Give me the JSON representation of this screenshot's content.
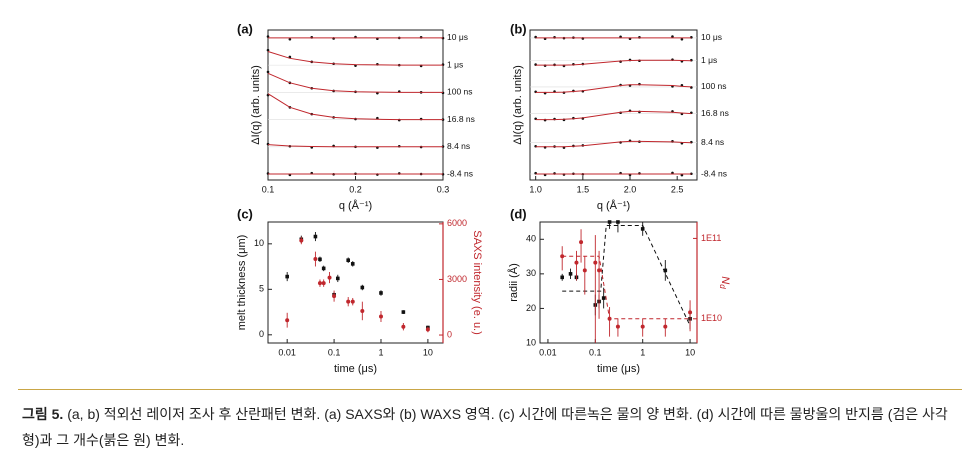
{
  "chart_data": [
    {
      "type": "offset_line",
      "panel_label": "(a)",
      "x_label": "q (Å⁻¹)",
      "y_label": "ΔI(q) (arb. units)",
      "xlim": [
        0.1,
        0.3
      ],
      "xticks": [
        0.1,
        0.2,
        0.3
      ],
      "ylim": [
        0.78,
        6.29
      ],
      "point_color": "#111111",
      "fit_color": "#c0272d",
      "x": [
        0.1,
        0.125,
        0.15,
        0.175,
        0.2,
        0.225,
        0.25,
        0.275,
        0.3
      ],
      "series": [
        {
          "name": "10 μs",
          "values": [
            6.05,
            5.95,
            6.02,
            5.98,
            6.03,
            5.97,
            6.0,
            6.02,
            5.99
          ],
          "fit": [
            6,
            6,
            6,
            6,
            6,
            6,
            6,
            6,
            6
          ]
        },
        {
          "name": "1 μs",
          "values": [
            5.55,
            5.3,
            5.12,
            5.05,
            4.98,
            5.03,
            5.0,
            4.97,
            5.02
          ],
          "fit": [
            5.5,
            5.25,
            5.12,
            5.05,
            5.02,
            5.01,
            5,
            5,
            5
          ]
        },
        {
          "name": "100 ns",
          "values": [
            4.75,
            4.35,
            4.15,
            4.05,
            4.02,
            3.97,
            4.03,
            4.0,
            3.98
          ],
          "fit": [
            4.7,
            4.35,
            4.15,
            4.06,
            4.02,
            4.01,
            4,
            4,
            4
          ]
        },
        {
          "name": "16.8 ns",
          "values": [
            3.9,
            3.45,
            3.2,
            3.08,
            3.02,
            3.05,
            2.98,
            3.02,
            3.0
          ],
          "fit": [
            3.95,
            3.45,
            3.2,
            3.08,
            3.03,
            3.01,
            3,
            3,
            3
          ]
        },
        {
          "name": "8.4 ns",
          "values": [
            2.1,
            2.02,
            1.98,
            2.03,
            2.0,
            1.97,
            2.02,
            1.99,
            2.01
          ],
          "fit": [
            2.08,
            2.03,
            2.01,
            2,
            2,
            2,
            2,
            2,
            2
          ]
        },
        {
          "name": "-8.4 ns",
          "values": [
            1.02,
            0.97,
            1.03,
            0.99,
            1.01,
            0.98,
            1.02,
            1.0,
            0.99
          ],
          "fit": [
            1,
            1,
            1,
            1,
            1,
            1,
            1,
            1,
            1
          ]
        }
      ]
    },
    {
      "type": "offset_line",
      "panel_label": "(b)",
      "x_label": "q (Å⁻¹)",
      "y_label": "ΔI(q) (arb. units)",
      "xlim": [
        0.94,
        2.71
      ],
      "xticks": [
        {
          "value": 1,
          "label": "1.0"
        },
        1.5,
        {
          "value": 2,
          "label": "2.0"
        },
        2.5
      ],
      "ylim": [
        0.78,
        6.29
      ],
      "point_color": "#111111",
      "fit_color": "#c0272d",
      "x": [
        1.0,
        1.1,
        1.2,
        1.3,
        1.4,
        1.5,
        1.9,
        2.0,
        2.1,
        2.45,
        2.55,
        2.65
      ],
      "series": [
        {
          "name": "10 μs",
          "values": [
            6.03,
            5.97,
            6.02,
            5.99,
            6.01,
            5.98,
            6.04,
            5.97,
            6.02,
            6.05,
            5.95,
            6.02
          ],
          "fit": [
            6,
            6,
            6,
            6,
            6,
            6,
            6,
            6,
            6,
            6,
            6,
            6
          ]
        },
        {
          "name": "1 μs",
          "values": [
            5.02,
            4.98,
            5.01,
            4.97,
            5.03,
            5.04,
            5.13,
            5.19,
            5.16,
            5.2,
            5.14,
            5.18
          ],
          "fit": [
            5,
            5,
            5,
            5,
            5.01,
            5.03,
            5.15,
            5.17,
            5.18,
            5.18,
            5.17,
            5.16
          ]
        },
        {
          "name": "100 ns",
          "values": [
            4.02,
            3.97,
            4.03,
            3.99,
            4.05,
            4.04,
            4.27,
            4.25,
            4.3,
            4.22,
            4.26,
            4.18
          ],
          "fit": [
            4,
            4,
            4,
            4.01,
            4.03,
            4.06,
            4.25,
            4.28,
            4.28,
            4.25,
            4.22,
            4.2
          ]
        },
        {
          "name": "16.8 ns",
          "values": [
            3.03,
            2.98,
            3.02,
            2.99,
            3.05,
            3.04,
            3.25,
            3.32,
            3.28,
            3.3,
            3.21,
            3.25
          ],
          "fit": [
            3,
            3,
            3,
            3.01,
            3.03,
            3.06,
            3.27,
            3.3,
            3.3,
            3.27,
            3.24,
            3.22
          ]
        },
        {
          "name": "8.4 ns",
          "values": [
            2.02,
            1.98,
            2.01,
            1.97,
            2.03,
            2.05,
            2.16,
            2.22,
            2.19,
            2.2,
            2.13,
            2.17
          ],
          "fit": [
            2,
            2,
            2,
            2,
            2.02,
            2.04,
            2.18,
            2.2,
            2.2,
            2.18,
            2.16,
            2.15
          ]
        },
        {
          "name": "-8.4 ns",
          "values": [
            1.03,
            0.97,
            1.02,
            0.98,
            1.01,
            0.99,
            1.03,
            0.97,
            1.02,
            1.04,
            0.96,
            1.01
          ],
          "fit": [
            1,
            1,
            1,
            1,
            1,
            1,
            1,
            1,
            1,
            1,
            1,
            1
          ]
        }
      ]
    },
    {
      "type": "scatter_error",
      "panel_label": "(c)",
      "x_label": "time (μs)",
      "y_label": "melt thickness (μm)",
      "y2_label": "SAXS intensity (e. u.)",
      "x_log": true,
      "xlim": [
        0.0039,
        21
      ],
      "xticks": [
        0.01,
        0.1,
        1,
        10
      ],
      "ylim": [
        -0.9,
        12.4
      ],
      "yticks": [
        0,
        5,
        10
      ],
      "y2lim": [
        -430,
        6100
      ],
      "y2ticks": [
        0,
        3000,
        6000
      ],
      "y2_color": "#c0272d",
      "series": [
        {
          "axis": "y",
          "marker": "square",
          "color": "#111111",
          "x": [
            0.01,
            0.02,
            0.04,
            0.05,
            0.06,
            0.1,
            0.12,
            0.2,
            0.25,
            0.4,
            1,
            3,
            10
          ],
          "values": [
            6.4,
            10.5,
            10.8,
            8.3,
            7.3,
            4.4,
            6.2,
            8.2,
            7.8,
            5.2,
            4.6,
            2.5,
            0.8
          ],
          "errors": [
            0.5,
            0.4,
            0.5,
            0.3,
            0.3,
            0.3,
            0.4,
            0.3,
            0.3,
            0.3,
            0.3,
            0.2,
            0.2
          ]
        },
        {
          "axis": "y2",
          "marker": "circle",
          "color": "#c0272d",
          "x": [
            0.01,
            0.02,
            0.04,
            0.05,
            0.06,
            0.08,
            0.1,
            0.2,
            0.25,
            0.4,
            1,
            3,
            10
          ],
          "values": [
            800,
            5100,
            4100,
            2800,
            2800,
            3100,
            2100,
            1800,
            1800,
            1300,
            1000,
            450,
            300
          ],
          "errors": [
            400,
            200,
            400,
            200,
            200,
            300,
            300,
            250,
            200,
            500,
            300,
            200,
            150
          ]
        }
      ]
    },
    {
      "type": "scatter_error",
      "panel_label": "(d)",
      "x_label": "time (μs)",
      "y_label": "radii (Å)",
      "y2_label": "N",
      "y2_label_sub": "d",
      "x_log": true,
      "xlim": [
        0.0068,
        14
      ],
      "xticks": [
        0.01,
        0.1,
        1,
        10
      ],
      "ylim": [
        10,
        45
      ],
      "yticks": [
        10,
        20,
        30,
        40
      ],
      "y2_log": true,
      "y2lim": [
        5000000000,
        160000000000
      ],
      "y2ticks": [
        {
          "value": 10000000000,
          "label": "1E10"
        },
        {
          "value": 100000000000,
          "label": "1E11"
        }
      ],
      "y2_color": "#c0272d",
      "series": [
        {
          "axis": "y",
          "marker": "square",
          "color": "#111111",
          "x": [
            0.02,
            0.03,
            0.04,
            0.1,
            0.12,
            0.15,
            0.2,
            0.3,
            1,
            3,
            10
          ],
          "values": [
            29,
            30,
            29,
            21,
            22,
            23,
            45,
            45,
            43,
            31,
            17
          ],
          "errors": [
            1,
            1.5,
            1,
            3,
            2,
            3,
            2,
            3,
            2,
            3,
            3
          ],
          "fit_x": [
            0.02,
            0.13,
            0.17,
            1,
            10
          ],
          "fit_values": [
            25,
            25,
            44,
            44,
            15
          ]
        },
        {
          "axis": "y2",
          "marker": "circle",
          "color": "#c0272d",
          "x": [
            0.02,
            0.04,
            0.05,
            0.06,
            0.1,
            0.12,
            0.2,
            0.3,
            1,
            3,
            10
          ],
          "values": [
            60000000000,
            50000000000,
            90000000000,
            40000000000,
            50000000000,
            40000000000,
            10000000000,
            8000000000,
            8000000000,
            8000000000,
            12000000000
          ],
          "errors": [
            20000000000,
            20000000000,
            40000000000,
            20000000000,
            60000000000,
            30000000000,
            4000000000,
            2000000000,
            2000000000,
            2000000000,
            5000000000
          ],
          "fit_x": [
            0.02,
            0.12,
            0.2,
            10
          ],
          "fit_values": [
            60000000000,
            60000000000,
            10000000000,
            10000000000
          ]
        }
      ]
    }
  ],
  "caption": {
    "label": "그림 5.",
    "text": "(a, b) 적외선 레이저 조사 후 산란패턴 변화. (a) SAXS와 (b) WAXS 영역. (c) 시간에 따른녹은 물의 양 변화. (d) 시간에 따른 물방울의 반지름 (검은 사각형)과 그 개수(붉은 원) 변화."
  }
}
